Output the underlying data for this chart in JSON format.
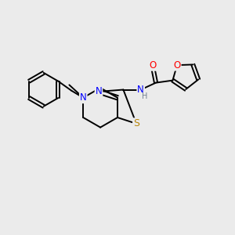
{
  "bg_color": "#ebebeb",
  "bond_color": "#000000",
  "atom_colors": {
    "N": "#0000ff",
    "S": "#b8860b",
    "O": "#ff0000",
    "H": "#708090",
    "C": "#000000"
  },
  "line_width": 1.4,
  "font_size": 8.5
}
